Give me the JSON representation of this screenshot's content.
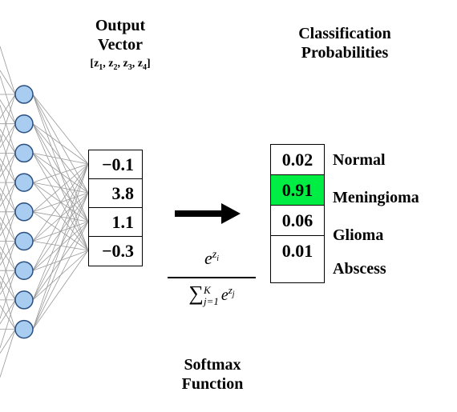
{
  "output_vector": {
    "title_line1": "Output",
    "title_line2": "Vector",
    "components": [
      "z",
      "1",
      ", z",
      "2",
      ", z",
      "3",
      ", z",
      "4"
    ],
    "values": [
      "−0.1",
      "3.8",
      "1.1",
      "−0.3"
    ]
  },
  "classification": {
    "title_line1": "Classification",
    "title_line2": "Probabilities",
    "probabilities": [
      "0.02",
      "0.91",
      "0.06",
      "0.01"
    ],
    "labels": [
      "Normal",
      "Meningioma",
      "Glioma",
      "Abscess"
    ],
    "highlight_index": 1,
    "highlight_color": "#00ee44"
  },
  "softmax": {
    "numerator_base": "e",
    "numerator_exp": "z",
    "numerator_exp_sub": "i",
    "sum_symbol": "∑",
    "sum_upper": "K",
    "sum_lower": "j=1",
    "denominator_base": "e",
    "denominator_exp": "z",
    "denominator_exp_sub": "j",
    "label_line1": "Softmax",
    "label_line2": "Function"
  },
  "network": {
    "node_count": 9,
    "node_color": "#a8cdf0",
    "node_stroke": "#2a4f80",
    "edge_color": "#999999",
    "arrow_color": "#000000"
  }
}
